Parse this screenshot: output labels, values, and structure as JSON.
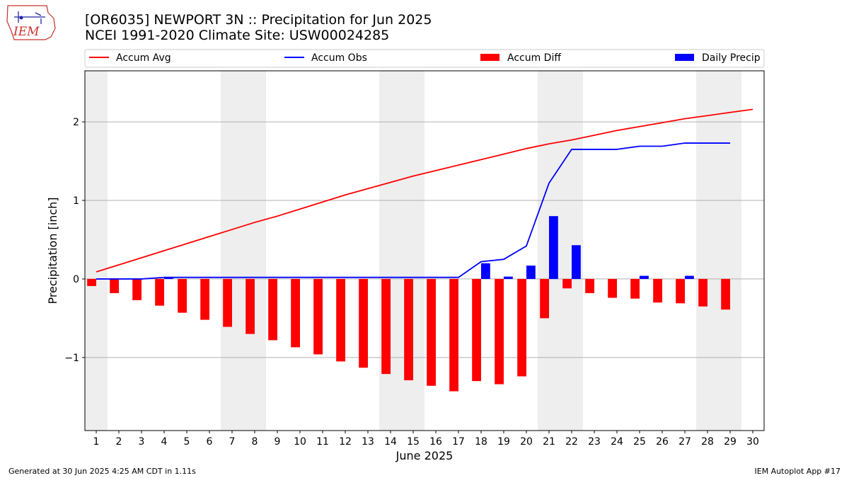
{
  "header": {
    "title_line1": "[OR6035] NEWPORT 3N :: Precipitation for Jun 2025",
    "title_line2": "NCEI 1991-2020 Climate Site: USW00024285",
    "logo_text": "IEM"
  },
  "footer": {
    "generated": "Generated at 30 Jun 2025 4:25 AM CDT in 1.11s",
    "app": "IEM Autoplot App #17"
  },
  "colors": {
    "accum_avg": "#ff0000",
    "accum_obs": "#0000ff",
    "accum_diff": "#ff0000",
    "daily_precip": "#0000ff",
    "weekend_band": "#eeeeee",
    "grid": "#b0b0b0"
  },
  "chart_data": {
    "type": "bar",
    "xlabel": "June 2025",
    "ylabel": "Precipitation [inch]",
    "days": [
      1,
      2,
      3,
      4,
      5,
      6,
      7,
      8,
      9,
      10,
      11,
      12,
      13,
      14,
      15,
      16,
      17,
      18,
      19,
      20,
      21,
      22,
      23,
      24,
      25,
      26,
      27,
      28,
      29,
      30
    ],
    "xlim": [
      0.5,
      30.5
    ],
    "ylim": [
      -1.93,
      2.65
    ],
    "yticks": [
      -1,
      0,
      1,
      2
    ],
    "ytick_labels": [
      "−1",
      "0",
      "1",
      "2"
    ],
    "grid": "horizontal",
    "legend_position": "top",
    "weekend_bands": [
      [
        0.5,
        1.5
      ],
      [
        6.5,
        8.5
      ],
      [
        13.5,
        15.5
      ],
      [
        20.5,
        22.5
      ],
      [
        27.5,
        29.5
      ]
    ],
    "series": [
      {
        "name": "Accum Avg",
        "kind": "line",
        "values": [
          0.09,
          0.18,
          0.27,
          0.36,
          0.45,
          0.54,
          0.63,
          0.72,
          0.8,
          0.89,
          0.98,
          1.07,
          1.15,
          1.23,
          1.31,
          1.38,
          1.45,
          1.52,
          1.59,
          1.66,
          1.72,
          1.77,
          1.83,
          1.89,
          1.94,
          1.99,
          2.04,
          2.08,
          2.12,
          2.16
        ]
      },
      {
        "name": "Accum Obs",
        "kind": "line",
        "values": [
          0.0,
          0.0,
          0.0,
          0.02,
          0.02,
          0.02,
          0.02,
          0.02,
          0.02,
          0.02,
          0.02,
          0.02,
          0.02,
          0.02,
          0.02,
          0.02,
          0.02,
          0.22,
          0.25,
          0.42,
          1.22,
          1.65,
          1.65,
          1.65,
          1.69,
          1.69,
          1.73,
          1.73,
          1.73,
          null
        ]
      },
      {
        "name": "Accum Diff",
        "kind": "bar",
        "values": [
          -0.09,
          -0.18,
          -0.27,
          -0.34,
          -0.43,
          -0.52,
          -0.61,
          -0.7,
          -0.78,
          -0.87,
          -0.96,
          -1.05,
          -1.13,
          -1.21,
          -1.29,
          -1.36,
          -1.43,
          -1.3,
          -1.34,
          -1.24,
          -0.5,
          -0.12,
          -0.18,
          -0.24,
          -0.25,
          -0.3,
          -0.31,
          -0.35,
          -0.39,
          null
        ]
      },
      {
        "name": "Daily Precip",
        "kind": "bar",
        "values": [
          0,
          0,
          0,
          0.02,
          0,
          0,
          0,
          0,
          0,
          0,
          0,
          0,
          0,
          0,
          0,
          0,
          0,
          0.2,
          0.03,
          0.17,
          0.8,
          0.43,
          0,
          0,
          0.04,
          0,
          0.04,
          0,
          0,
          null
        ]
      }
    ]
  }
}
